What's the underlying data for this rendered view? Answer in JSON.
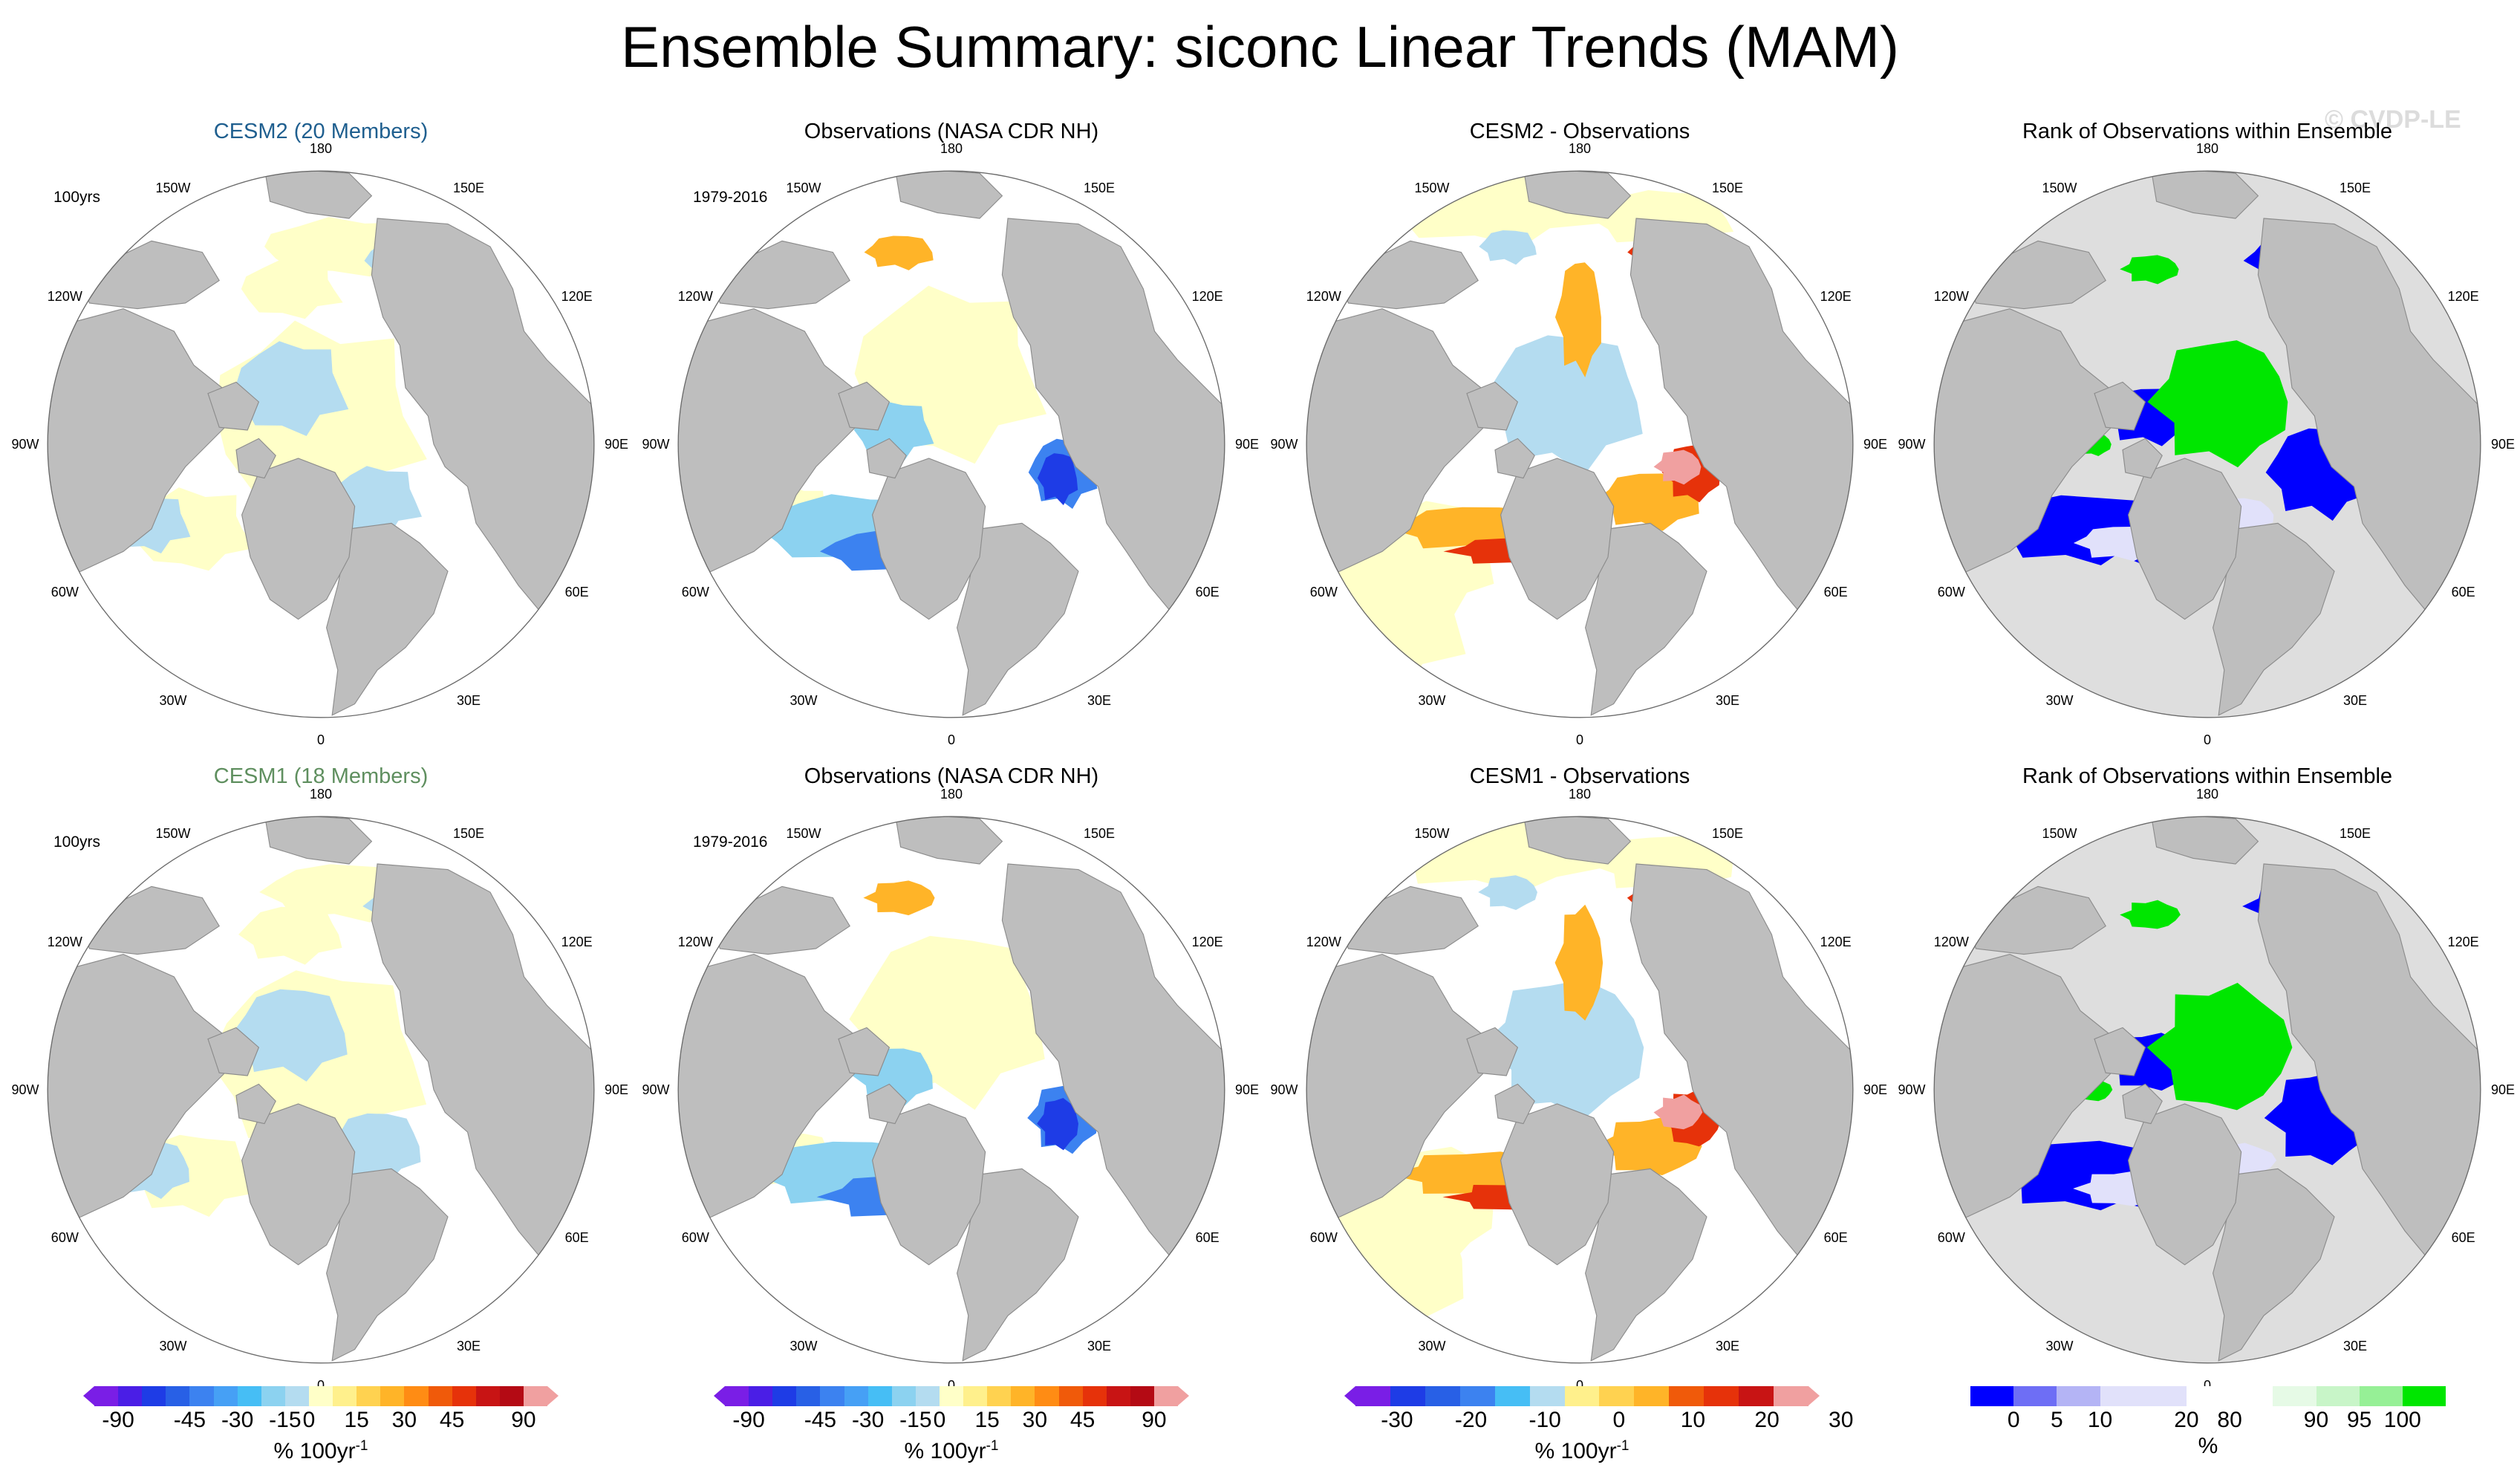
{
  "title": "Ensemble Summary: siconc Linear Trends (MAM)",
  "watermark": "© CVDP-LE",
  "colors": {
    "cesm2_title": "#1f5f8f",
    "cesm1_title": "#5f8f5f",
    "land": "#bebebe",
    "ocean": "#ffffff",
    "rank_background": "#dedede"
  },
  "lon_labels": [
    "180",
    "150E",
    "120E",
    "90E",
    "60E",
    "30E",
    "0",
    "30W",
    "60W",
    "90W",
    "120W",
    "150W"
  ],
  "rows": [
    {
      "panels": [
        {
          "title": "CESM2 (20 Members)",
          "corner": "100yrs",
          "kind": "model"
        },
        {
          "title": "Observations (NASA CDR NH)",
          "corner": "1979-2016",
          "kind": "obs"
        },
        {
          "title": "CESM2 - Observations",
          "corner": "",
          "kind": "diff"
        },
        {
          "title": "Rank of Observations within Ensemble",
          "corner": "",
          "kind": "rank"
        }
      ]
    },
    {
      "panels": [
        {
          "title": "CESM1 (18 Members)",
          "corner": "100yrs",
          "kind": "model"
        },
        {
          "title": "Observations (NASA CDR NH)",
          "corner": "1979-2016",
          "kind": "obs"
        },
        {
          "title": "CESM1 - Observations",
          "corner": "",
          "kind": "diff"
        },
        {
          "title": "Rank of Observations within Ensemble",
          "corner": "",
          "kind": "rank"
        }
      ]
    }
  ],
  "colorbars": [
    {
      "units": "% 100yr",
      "units_exp": "-1",
      "ticks": [
        "-90",
        "-45",
        "-30",
        "-15",
        "0",
        "15",
        "30",
        "45",
        "90"
      ],
      "colors": [
        "#7a1ee6",
        "#4a1ee6",
        "#1e3ce6",
        "#2860e6",
        "#3c82f0",
        "#46a0f5",
        "#46bef5",
        "#8cd2f0",
        "#b4dcf0",
        "#ffffc8",
        "#fff08c",
        "#ffd250",
        "#ffb428",
        "#ff8c14",
        "#f05a0a",
        "#e6320a",
        "#c81414",
        "#b40a14",
        "#f0a0a0"
      ]
    },
    {
      "units": "% 100yr",
      "units_exp": "-1",
      "ticks": [
        "-90",
        "-45",
        "-30",
        "-15",
        "0",
        "15",
        "30",
        "45",
        "90"
      ],
      "colors": [
        "#7a1ee6",
        "#4a1ee6",
        "#1e3ce6",
        "#2860e6",
        "#3c82f0",
        "#46a0f5",
        "#46bef5",
        "#8cd2f0",
        "#b4dcf0",
        "#ffffc8",
        "#fff08c",
        "#ffd250",
        "#ffb428",
        "#ff8c14",
        "#f05a0a",
        "#e6320a",
        "#c81414",
        "#b40a14",
        "#f0a0a0"
      ]
    },
    {
      "units": "% 100yr",
      "units_exp": "-1",
      "ticks": [
        "-30",
        "-20",
        "-10",
        "0",
        "10",
        "20",
        "30"
      ],
      "colors": [
        "#7a1ee6",
        "#1e3ce6",
        "#2860e6",
        "#3c82f0",
        "#46bef5",
        "#b4dcf0",
        "#fff08c",
        "#ffd250",
        "#ffb428",
        "#f05a0a",
        "#e6320a",
        "#c81414",
        "#f0a0a0"
      ]
    },
    {
      "units": "%",
      "units_exp": "",
      "ticks": [
        "0",
        "5",
        "10",
        "20",
        "80",
        "90",
        "95",
        "100"
      ],
      "colors": [
        "#0000ff",
        "#6e6ef5",
        "#b4b4f5",
        "#e1e1fa",
        "#e1e1fa",
        "#ffffff",
        "#ffffff",
        "#e6fae6",
        "#c8f5c8",
        "#96f096",
        "#00e600"
      ]
    }
  ]
}
